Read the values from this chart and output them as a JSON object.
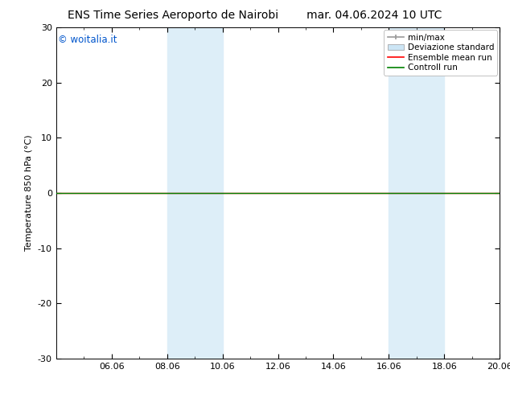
{
  "title_left": "ENS Time Series Aeroporto de Nairobi",
  "title_right": "mar. 04.06.2024 10 UTC",
  "ylabel": "Temperature 850 hPa (°C)",
  "ylim": [
    -30,
    30
  ],
  "yticks": [
    -30,
    -20,
    -10,
    0,
    10,
    20,
    30
  ],
  "xtick_labels": [
    "06.06",
    "08.06",
    "10.06",
    "12.06",
    "14.06",
    "16.06",
    "18.06",
    "20.06"
  ],
  "xtick_positions": [
    2,
    4,
    6,
    8,
    10,
    12,
    14,
    16
  ],
  "x_minor_positions": [
    0,
    1,
    2,
    3,
    4,
    5,
    6,
    7,
    8,
    9,
    10,
    11,
    12,
    13,
    14,
    15,
    16
  ],
  "shaded_bands": [
    {
      "x_start": 4,
      "x_end": 5
    },
    {
      "x_start": 5,
      "x_end": 6
    },
    {
      "x_start": 12,
      "x_end": 13
    },
    {
      "x_start": 13,
      "x_end": 14
    }
  ],
  "shaded_color": "#ddeef8",
  "bg_color": "#ffffff",
  "plot_bg_color": "#ffffff",
  "control_run_color": "#008000",
  "ensemble_mean_color": "#ff0000",
  "minmax_color": "#999999",
  "std_color": "#cce5f5",
  "copyright_text": "© woitalia.it",
  "copyright_color": "#0055cc",
  "legend_items": [
    "min/max",
    "Deviazione standard",
    "Ensemble mean run",
    "Controll run"
  ],
  "legend_colors": [
    "#999999",
    "#cce5f5",
    "#ff0000",
    "#008000"
  ],
  "title_fontsize": 10,
  "axis_fontsize": 8,
  "tick_fontsize": 8,
  "legend_fontsize": 7.5
}
